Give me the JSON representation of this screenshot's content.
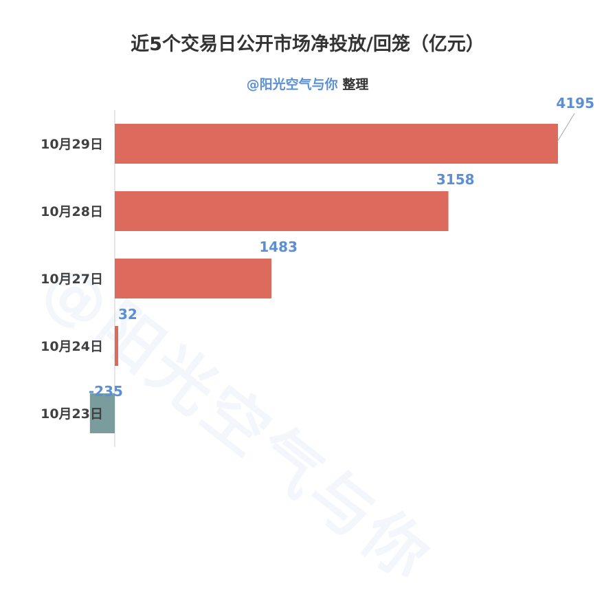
{
  "title": "近5个交易日公开市场净投放/回笼（亿元）",
  "subtitle": {
    "handle": "@阳光空气与你",
    "suffix": "整理"
  },
  "watermark": "@阳光空气与你",
  "colors": {
    "positive_bar": "#dc6b5e",
    "negative_bar": "#7a9c9c",
    "value_label": "#5a8fd6",
    "axis": "#cccccc"
  },
  "chart_data": {
    "type": "bar",
    "orientation": "horizontal",
    "categories": [
      "10月29日",
      "10月28日",
      "10月27日",
      "10月24日",
      "10月23日"
    ],
    "values": [
      4195,
      3158,
      1483,
      32,
      -235
    ],
    "value_labels": [
      "4195",
      "3158",
      "1483",
      "32",
      "-235"
    ],
    "xlim": [
      -235,
      4195
    ],
    "grid": false,
    "legend": "none"
  }
}
